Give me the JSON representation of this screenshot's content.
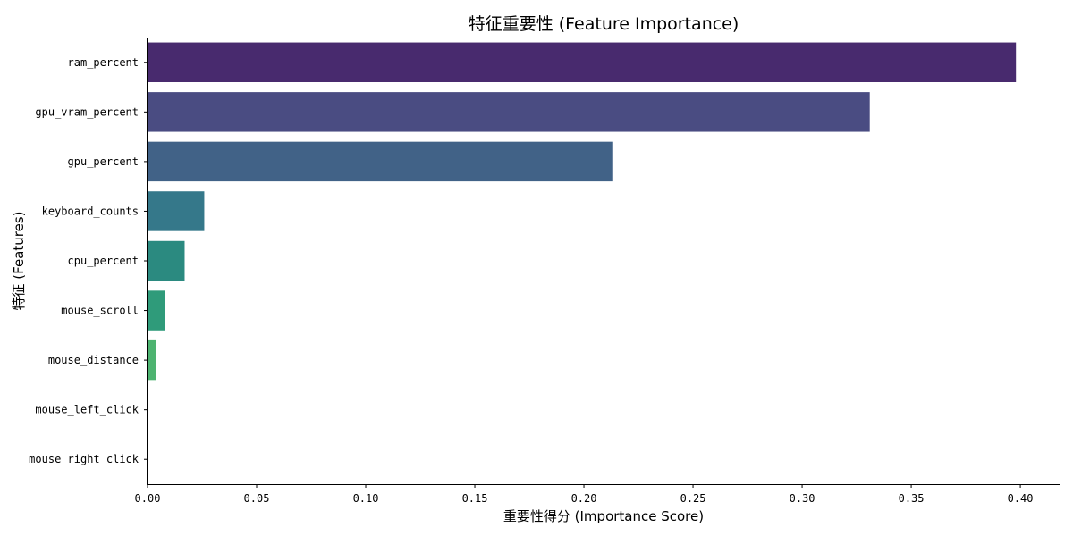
{
  "chart_data": {
    "type": "bar",
    "orientation": "horizontal",
    "title": "特征重要性 (Feature Importance)",
    "xlabel": "重要性得分 (Importance Score)",
    "ylabel": "特征 (Features)",
    "categories": [
      "ram_percent",
      "gpu_vram_percent",
      "gpu_percent",
      "keyboard_counts",
      "cpu_percent",
      "mouse_scroll",
      "mouse_distance",
      "mouse_left_click",
      "mouse_right_click"
    ],
    "values": [
      0.398,
      0.331,
      0.213,
      0.026,
      0.017,
      0.008,
      0.004,
      0.0,
      0.0
    ],
    "colors": [
      "#482a6e",
      "#4a4c82",
      "#416287",
      "#35788a",
      "#2b8a80",
      "#2f9b7a",
      "#4db370",
      "#6cc35f",
      "#8fd14f"
    ],
    "xlim": [
      0,
      0.418
    ],
    "xticks": [
      "0.00",
      "0.05",
      "0.10",
      "0.15",
      "0.20",
      "0.25",
      "0.30",
      "0.35",
      "0.40"
    ],
    "grid": false,
    "legend": "none"
  }
}
